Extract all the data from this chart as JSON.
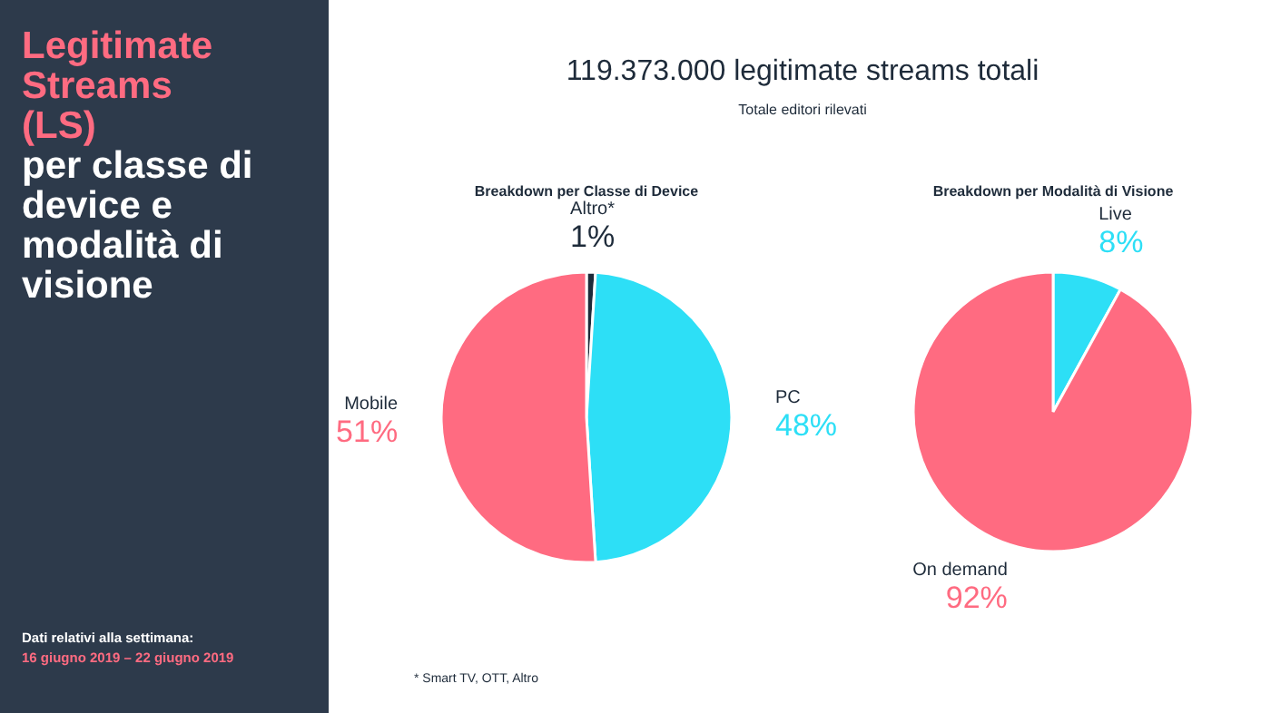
{
  "chart_data": [
    {
      "type": "other",
      "title": "Legitimate Streams (LS)",
      "subtitle": "per classe di device e modalità di visione",
      "annotations": [
        "Dati relativi alla settimana:",
        "16 giugno 2019 – 22 giugno 2019",
        "119.373.000 legitimate streams totali",
        "Totale editori rilevati"
      ]
    },
    {
      "type": "pie",
      "title": "Breakdown per Classe di Device",
      "categories": [
        "Altro*",
        "PC",
        "Mobile"
      ],
      "values": [
        1,
        48,
        51
      ],
      "colors": [
        "#1e2b3a",
        "#2ddff6",
        "#ff6b81"
      ],
      "value_labels": [
        "1%",
        "48%",
        "51%"
      ],
      "annotations": [
        "* Smart TV, OTT, Altro"
      ]
    },
    {
      "type": "pie",
      "title": "Breakdown per Modalità di Visione",
      "categories": [
        "Live",
        "On demand"
      ],
      "values": [
        8,
        92
      ],
      "colors": [
        "#2ddff6",
        "#ff6b81"
      ],
      "value_labels": [
        "8%",
        "92%"
      ]
    }
  ]
}
